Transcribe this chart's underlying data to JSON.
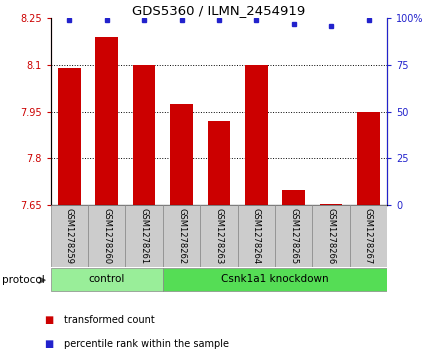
{
  "title": "GDS5360 / ILMN_2454919",
  "samples": [
    "GSM1278259",
    "GSM1278260",
    "GSM1278261",
    "GSM1278262",
    "GSM1278263",
    "GSM1278264",
    "GSM1278265",
    "GSM1278266",
    "GSM1278267"
  ],
  "transformed_count": [
    8.09,
    8.19,
    8.1,
    7.975,
    7.92,
    8.1,
    7.7,
    7.655,
    7.95
  ],
  "percentile_rank": [
    99,
    99,
    99,
    99,
    99,
    99,
    97,
    96,
    99
  ],
  "ylim": [
    7.65,
    8.25
  ],
  "yticks": [
    7.65,
    7.8,
    7.95,
    8.1,
    8.25
  ],
  "right_ylim": [
    0,
    100
  ],
  "right_yticks": [
    0,
    25,
    50,
    75,
    100
  ],
  "right_yticklabels": [
    "0",
    "25",
    "50",
    "75",
    "100%"
  ],
  "bar_color": "#cc0000",
  "dot_color": "#2222cc",
  "bar_width": 0.6,
  "groups": [
    {
      "label": "control",
      "start": 0,
      "end": 3,
      "color": "#99ee99"
    },
    {
      "label": "Csnk1a1 knockdown",
      "start": 3,
      "end": 9,
      "color": "#55dd55"
    }
  ],
  "protocol_label": "protocol",
  "left_tick_color": "#cc0000",
  "right_tick_color": "#2222cc",
  "legend_items": [
    {
      "label": "transformed count",
      "color": "#cc0000"
    },
    {
      "label": "percentile rank within the sample",
      "color": "#2222cc"
    }
  ],
  "sample_box_color": "#cccccc",
  "grid_yticks": [
    7.8,
    7.95,
    8.1
  ]
}
